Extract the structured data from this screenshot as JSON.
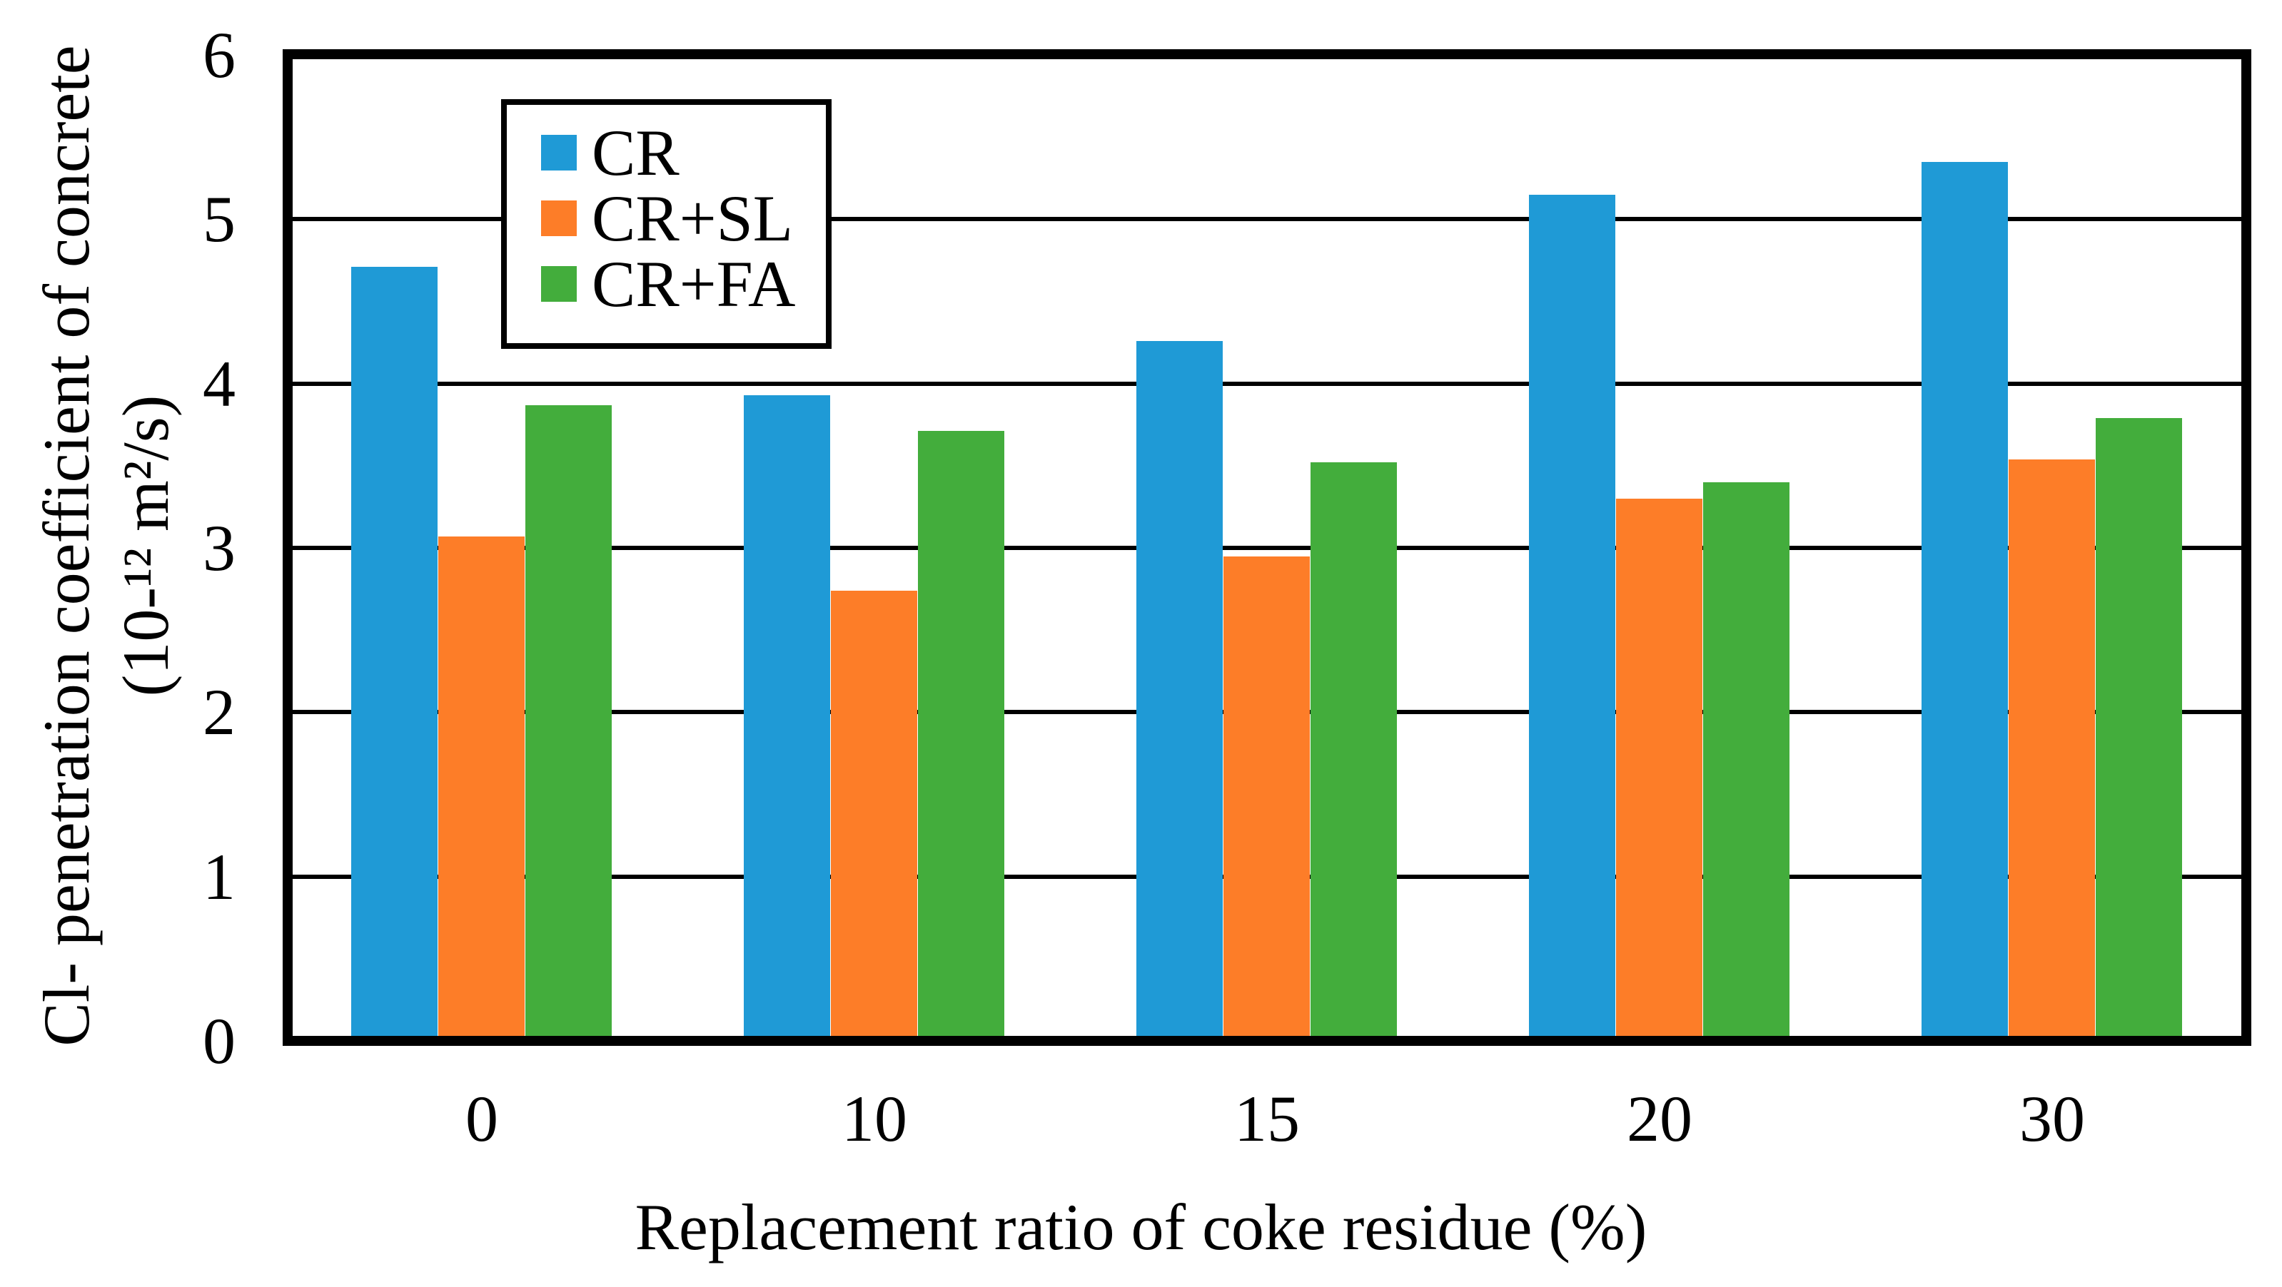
{
  "chart_data": {
    "type": "bar",
    "title": "",
    "categories": [
      "0",
      "10",
      "15",
      "20",
      "30"
    ],
    "series": [
      {
        "name": "CR",
        "color": "#1F9AD6",
        "values": [
          4.71,
          3.93,
          4.26,
          5.15,
          5.35
        ]
      },
      {
        "name": "CR+SL",
        "color": "#FD7D28",
        "values": [
          3.07,
          2.74,
          2.95,
          3.3,
          3.54
        ]
      },
      {
        "name": "CR+FA",
        "color": "#43AD3C",
        "values": [
          3.87,
          3.71,
          3.52,
          3.4,
          3.79
        ]
      }
    ],
    "xlabel": "Replacement ratio of coke residue (%)",
    "ylabel_line1": "Cl- penetration coefficient of concrete",
    "ylabel_line2": "(10-¹² m²/s)",
    "ylim": [
      0,
      6
    ],
    "yticks": [
      "0",
      "1",
      "2",
      "3",
      "4",
      "5",
      "6"
    ],
    "grid": "horizontal",
    "legend_position": "top-left-inside",
    "axis_color": "#000000",
    "background_color": "#ffffff"
  }
}
